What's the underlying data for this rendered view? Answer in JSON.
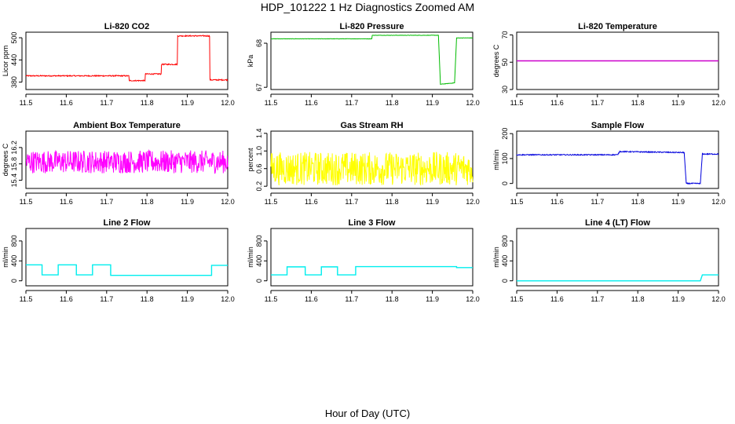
{
  "figure": {
    "title": "HDP_101222  1 Hz Diagnostics Zoomed AM",
    "xlabel": "Hour of Day (UTC)"
  },
  "chart_data": [
    {
      "type": "line",
      "title": "Li-820 CO2",
      "ylabel": "Licor ppm",
      "color": "#ff0000",
      "xlim": [
        11.5,
        12.0
      ],
      "xticks": [
        11.5,
        11.6,
        11.7,
        11.8,
        11.9,
        12.0
      ],
      "ylim": [
        360,
        515
      ],
      "yticks": [
        380,
        440,
        500
      ],
      "noise": 1.5,
      "series": [
        {
          "x": [
            11.5,
            11.755,
            11.755,
            11.795,
            11.795,
            11.835,
            11.835,
            11.875,
            11.875,
            11.955,
            11.955,
            12.0
          ],
          "y": [
            397,
            397,
            384,
            384,
            402,
            402,
            428,
            428,
            505,
            505,
            386,
            386
          ]
        }
      ]
    },
    {
      "type": "line",
      "title": "Li-820 Pressure",
      "ylabel": "kPa",
      "color": "#00bb00",
      "xlim": [
        11.5,
        12.0
      ],
      "xticks": [
        11.5,
        11.6,
        11.7,
        11.8,
        11.9,
        12.0
      ],
      "ylim": [
        66.95,
        68.25
      ],
      "yticks": [
        67.0,
        68.0
      ],
      "noise": 0.004,
      "series": [
        {
          "x": [
            11.5,
            11.75,
            11.75,
            11.915,
            11.92,
            11.955,
            11.96,
            11.96,
            12.0
          ],
          "y": [
            68.1,
            68.1,
            68.18,
            68.18,
            67.07,
            67.1,
            68.12,
            68.12,
            68.12
          ]
        }
      ]
    },
    {
      "type": "line",
      "title": "Li-820 Temperature",
      "ylabel": "degrees C",
      "color": "#cc00cc",
      "xlim": [
        11.5,
        12.0
      ],
      "xticks": [
        11.5,
        11.6,
        11.7,
        11.8,
        11.9,
        12.0
      ],
      "ylim": [
        30,
        72
      ],
      "yticks": [
        30,
        50,
        70
      ],
      "noise": 0,
      "series": [
        {
          "x": [
            11.5,
            12.0
          ],
          "y": [
            51,
            51
          ]
        }
      ]
    },
    {
      "type": "line",
      "title": "Ambient Box Temperature",
      "ylabel": "degrees C",
      "color": "#ff00ff",
      "xlim": [
        11.5,
        12.0
      ],
      "xticks": [
        11.5,
        11.6,
        11.7,
        11.8,
        11.9,
        12.0
      ],
      "ylim": [
        15.2,
        16.6
      ],
      "yticks": [
        15.4,
        15.8,
        16.2
      ],
      "noise": 0.28,
      "series": [
        {
          "x": [
            11.5,
            12.0
          ],
          "y": [
            15.85,
            15.85
          ]
        }
      ]
    },
    {
      "type": "line",
      "title": "Gas Stream RH",
      "ylabel": "percent",
      "color": "#ffff00",
      "xlim": [
        11.5,
        12.0
      ],
      "xticks": [
        11.5,
        11.6,
        11.7,
        11.8,
        11.9,
        12.0
      ],
      "ylim": [
        0.15,
        1.45
      ],
      "yticks": [
        0.2,
        0.6,
        1.0,
        1.4
      ],
      "noise": 0.38,
      "series": [
        {
          "x": [
            11.5,
            12.0
          ],
          "y": [
            0.6,
            0.6
          ]
        }
      ]
    },
    {
      "type": "line",
      "title": "Sample Flow",
      "ylabel": "ml/min",
      "color": "#0000dd",
      "xlim": [
        11.5,
        12.0
      ],
      "xticks": [
        11.5,
        11.6,
        11.7,
        11.8,
        11.9,
        12.0
      ],
      "ylim": [
        -20,
        210
      ],
      "yticks": [
        0,
        100,
        200
      ],
      "noise": 2,
      "series": [
        {
          "x": [
            11.5,
            11.75,
            11.755,
            11.915,
            11.92,
            11.955,
            11.96,
            12.0
          ],
          "y": [
            115,
            115,
            128,
            124,
            0,
            0,
            118,
            118
          ]
        }
      ]
    },
    {
      "type": "line",
      "title": "Line 2 Flow",
      "ylabel": "ml/min",
      "color": "#00eeee",
      "xlim": [
        11.5,
        12.0
      ],
      "xticks": [
        11.5,
        11.6,
        11.7,
        11.8,
        11.9,
        12.0
      ],
      "ylim": [
        -100,
        1050
      ],
      "yticks": [
        0,
        400,
        800
      ],
      "noise": 0,
      "series": [
        {
          "x": [
            11.5,
            11.54,
            11.54,
            11.58,
            11.58,
            11.625,
            11.625,
            11.665,
            11.665,
            11.71,
            11.71,
            11.96,
            11.96,
            12.0
          ],
          "y": [
            320,
            320,
            120,
            120,
            320,
            320,
            120,
            120,
            320,
            320,
            110,
            110,
            310,
            310
          ]
        }
      ]
    },
    {
      "type": "line",
      "title": "Line 3 Flow",
      "ylabel": "ml/min",
      "color": "#00eeee",
      "xlim": [
        11.5,
        12.0
      ],
      "xticks": [
        11.5,
        11.6,
        11.7,
        11.8,
        11.9,
        12.0
      ],
      "ylim": [
        -100,
        1050
      ],
      "yticks": [
        0,
        400,
        800
      ],
      "noise": 0,
      "series": [
        {
          "x": [
            11.5,
            11.54,
            11.54,
            11.585,
            11.585,
            11.625,
            11.625,
            11.665,
            11.665,
            11.71,
            11.71,
            11.96,
            11.96,
            12.0
          ],
          "y": [
            120,
            120,
            280,
            280,
            120,
            120,
            280,
            280,
            120,
            120,
            285,
            285,
            265,
            265
          ]
        }
      ]
    },
    {
      "type": "line",
      "title": "Line 4 (LT) Flow",
      "ylabel": "ml/min",
      "color": "#00eeee",
      "xlim": [
        11.5,
        12.0
      ],
      "xticks": [
        11.5,
        11.6,
        11.7,
        11.8,
        11.9,
        12.0
      ],
      "ylim": [
        -100,
        1050
      ],
      "yticks": [
        0,
        400,
        800
      ],
      "noise": 0,
      "series": [
        {
          "x": [
            11.5,
            11.955,
            11.96,
            12.0
          ],
          "y": [
            0,
            0,
            120,
            120
          ]
        }
      ]
    }
  ]
}
